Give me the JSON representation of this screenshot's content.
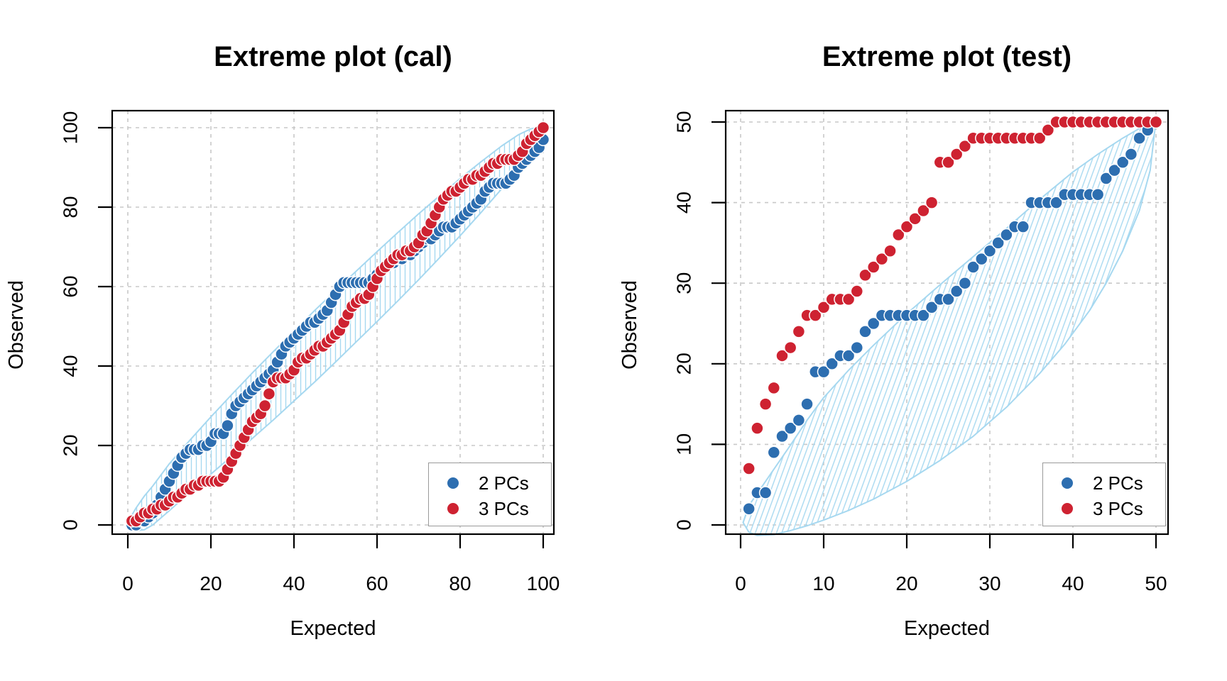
{
  "chart_data": [
    {
      "id": "cal",
      "type": "scatter",
      "title": "Extreme plot (cal)",
      "xlabel": "Expected",
      "ylabel": "Observed",
      "xlim": [
        0,
        100
      ],
      "ylim": [
        0,
        100
      ],
      "xticks": [
        0,
        20,
        40,
        60,
        80,
        100
      ],
      "yticks": [
        0,
        20,
        40,
        60,
        80,
        100
      ],
      "grid": true,
      "legend_position": "bottomright",
      "series": [
        {
          "name": "2 PCs",
          "color": "#2D6EB0",
          "x_start": 1,
          "y": [
            0,
            0,
            1,
            1,
            2,
            3,
            5,
            7,
            9,
            11,
            13,
            15,
            17,
            18,
            19,
            19,
            19,
            20,
            20,
            21,
            23,
            23,
            23,
            25,
            28,
            30,
            31,
            32,
            33,
            34,
            35,
            36,
            37,
            38,
            39,
            41,
            43,
            45,
            46,
            47,
            48,
            49,
            50,
            51,
            51,
            52,
            53,
            54,
            56,
            58,
            60,
            61,
            61,
            61,
            61,
            61,
            61,
            61,
            62,
            63,
            64,
            65,
            66,
            66,
            67,
            67,
            68,
            68,
            69,
            70,
            71,
            72,
            72,
            73,
            74,
            75,
            75,
            75,
            76,
            77,
            78,
            79,
            80,
            81,
            82,
            84,
            85,
            86,
            86,
            86,
            86,
            87,
            88,
            90,
            91,
            92,
            93,
            94,
            95,
            97
          ]
        },
        {
          "name": "3 PCs",
          "color": "#CE2231",
          "x_start": 1,
          "y": [
            1,
            1,
            2,
            3,
            3,
            4,
            4,
            5,
            5,
            6,
            7,
            7,
            8,
            9,
            9,
            10,
            10,
            11,
            11,
            11,
            11,
            11,
            12,
            14,
            16,
            18,
            20,
            22,
            24,
            26,
            27,
            28,
            30,
            33,
            36,
            37,
            37,
            37,
            38,
            39,
            41,
            42,
            42,
            43,
            44,
            45,
            45,
            46,
            47,
            48,
            49,
            51,
            53,
            55,
            56,
            57,
            57,
            58,
            60,
            62,
            64,
            65,
            66,
            67,
            68,
            68,
            69,
            69,
            70,
            71,
            73,
            74,
            76,
            78,
            80,
            82,
            83,
            84,
            84,
            85,
            86,
            87,
            87,
            88,
            88,
            89,
            90,
            91,
            91,
            92,
            92,
            92,
            92,
            93,
            94,
            96,
            97,
            98,
            99,
            100
          ]
        }
      ],
      "envelope": {
        "color": "#A6D8F0",
        "hatch": "vertical",
        "upper": [
          [
            0.5,
            0.5
          ],
          [
            1,
            2.5
          ],
          [
            2,
            4.3
          ],
          [
            4,
            7.3
          ],
          [
            6,
            9.8
          ],
          [
            10,
            15.4
          ],
          [
            15,
            21.4
          ],
          [
            20,
            27.2
          ],
          [
            25,
            32.8
          ],
          [
            30,
            38.3
          ],
          [
            35,
            43.6
          ],
          [
            40,
            48.8
          ],
          [
            45,
            54
          ],
          [
            50,
            59
          ],
          [
            55,
            63.9
          ],
          [
            60,
            68.8
          ],
          [
            65,
            73.6
          ],
          [
            70,
            78.3
          ],
          [
            75,
            82.8
          ],
          [
            80,
            87.2
          ],
          [
            85,
            91.4
          ],
          [
            90,
            95.4
          ],
          [
            94,
            98.2
          ],
          [
            97,
            99.7
          ],
          [
            100,
            100.4
          ]
        ],
        "lower": [
          [
            0.5,
            0.5
          ],
          [
            1,
            -0.8
          ],
          [
            2,
            -1.4
          ],
          [
            4,
            -1.2
          ],
          [
            6,
            0
          ],
          [
            10,
            3.6
          ],
          [
            15,
            8.3
          ],
          [
            20,
            12.8
          ],
          [
            25,
            17.3
          ],
          [
            30,
            21.8
          ],
          [
            35,
            26.4
          ],
          [
            40,
            31.2
          ],
          [
            45,
            36
          ],
          [
            50,
            41
          ],
          [
            55,
            46.1
          ],
          [
            60,
            51.2
          ],
          [
            65,
            56.4
          ],
          [
            70,
            61.7
          ],
          [
            75,
            67.2
          ],
          [
            80,
            72.8
          ],
          [
            85,
            78.6
          ],
          [
            90,
            84.6
          ],
          [
            94,
            89.6
          ],
          [
            97,
            93.7
          ],
          [
            99,
            96.7
          ],
          [
            100,
            99.6
          ]
        ]
      }
    },
    {
      "id": "test",
      "type": "scatter",
      "title": "Extreme plot (test)",
      "xlabel": "Expected",
      "ylabel": "Observed",
      "xlim": [
        0,
        50
      ],
      "ylim": [
        0,
        50
      ],
      "xticks": [
        0,
        10,
        20,
        30,
        40,
        50
      ],
      "yticks": [
        0,
        10,
        20,
        30,
        40,
        50
      ],
      "grid": true,
      "legend_position": "bottomright",
      "series": [
        {
          "name": "2 PCs",
          "color": "#2D6EB0",
          "x_start": 1,
          "y": [
            2,
            4,
            4,
            9,
            11,
            12,
            13,
            15,
            19,
            19,
            20,
            21,
            21,
            22,
            24,
            25,
            26,
            26,
            26,
            26,
            26,
            26,
            27,
            28,
            28,
            29,
            30,
            32,
            33,
            34,
            35,
            36,
            37,
            37,
            40,
            40,
            40,
            40,
            41,
            41,
            41,
            41,
            41,
            43,
            44,
            45,
            46,
            48,
            49,
            50
          ]
        },
        {
          "name": "3 PCs",
          "color": "#CE2231",
          "x_start": 1,
          "y": [
            7,
            12,
            15,
            17,
            21,
            22,
            24,
            26,
            26,
            27,
            28,
            28,
            28,
            29,
            31,
            32,
            33,
            34,
            36,
            37,
            38,
            39,
            40,
            45,
            45,
            46,
            47,
            48,
            48,
            48,
            48,
            48,
            48,
            48,
            48,
            48,
            49,
            50,
            50,
            50,
            50,
            50,
            50,
            50,
            50,
            50,
            50,
            50,
            50,
            50
          ]
        }
      ],
      "envelope": {
        "color": "#A6D8F0",
        "hatch": "diagonal",
        "upper": [
          [
            0.3,
            0.3
          ],
          [
            1,
            2.4
          ],
          [
            2,
            3.9
          ],
          [
            4,
            6.9
          ],
          [
            6,
            9.9
          ],
          [
            8,
            13
          ],
          [
            10,
            15.8
          ],
          [
            13,
            19.2
          ],
          [
            16,
            22.3
          ],
          [
            20,
            26.2
          ],
          [
            24,
            29.8
          ],
          [
            28,
            33.3
          ],
          [
            32,
            36.8
          ],
          [
            36,
            40.4
          ],
          [
            40,
            43.8
          ],
          [
            43,
            46
          ],
          [
            46,
            48
          ],
          [
            48,
            49.2
          ],
          [
            50,
            50.3
          ]
        ],
        "lower": [
          [
            0.3,
            0.3
          ],
          [
            1,
            -0.9
          ],
          [
            2,
            -1.3
          ],
          [
            4,
            -1.2
          ],
          [
            6,
            -0.7
          ],
          [
            8,
            -0.1
          ],
          [
            10,
            0.6
          ],
          [
            13,
            1.8
          ],
          [
            16,
            3.2
          ],
          [
            20,
            5.4
          ],
          [
            24,
            8
          ],
          [
            28,
            11
          ],
          [
            32,
            14.6
          ],
          [
            36,
            18.8
          ],
          [
            39,
            22.4
          ],
          [
            42,
            26.6
          ],
          [
            44,
            30
          ],
          [
            46,
            34
          ],
          [
            48,
            39
          ],
          [
            49.3,
            44
          ],
          [
            50,
            50.3
          ]
        ]
      }
    }
  ],
  "style": {
    "grid_color": "#C8C8C8",
    "axis_color": "#000000",
    "point_stroke": "#FFFFFF",
    "envelope_color": "#A6D8F0"
  }
}
